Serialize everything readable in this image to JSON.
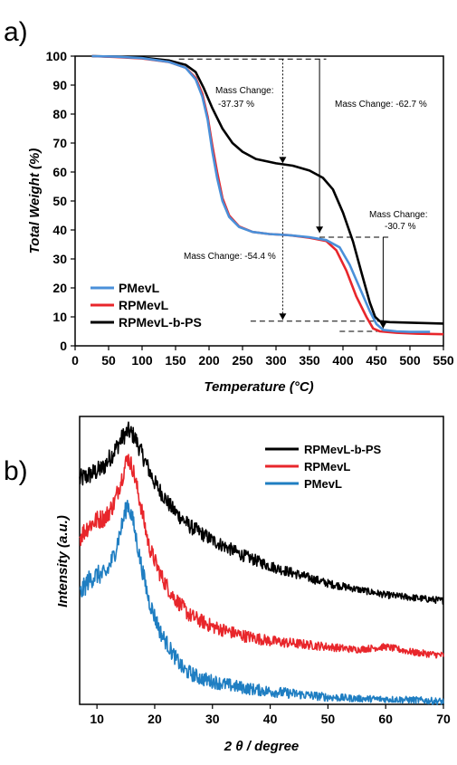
{
  "panel_a_label": "a)",
  "panel_b_label": "b)",
  "chart_data": [
    {
      "type": "line",
      "xlabel": "Temperature (°C)",
      "ylabel": "Total Weight (%)",
      "xlim": [
        0,
        550
      ],
      "ylim": [
        0,
        100
      ],
      "xticks": [
        0,
        50,
        100,
        150,
        200,
        250,
        300,
        350,
        400,
        450,
        500,
        550
      ],
      "yticks": [
        0,
        10,
        20,
        30,
        40,
        50,
        60,
        70,
        80,
        90,
        100
      ],
      "legend_position": "bottom-left",
      "series": [
        {
          "name": "PMevL",
          "color": "#4a90d9",
          "points": [
            [
              25,
              100
            ],
            [
              60,
              99.8
            ],
            [
              100,
              99.3
            ],
            [
              140,
              98
            ],
            [
              165,
              96
            ],
            [
              180,
              92
            ],
            [
              190,
              86
            ],
            [
              198,
              78
            ],
            [
              205,
              67
            ],
            [
              212,
              58
            ],
            [
              220,
              50
            ],
            [
              230,
              44.5
            ],
            [
              245,
              41
            ],
            [
              265,
              39.3
            ],
            [
              290,
              38.6
            ],
            [
              320,
              38.2
            ],
            [
              350,
              37.5
            ],
            [
              375,
              36.5
            ],
            [
              395,
              34
            ],
            [
              410,
              28
            ],
            [
              425,
              20
            ],
            [
              440,
              12
            ],
            [
              450,
              7.5
            ],
            [
              460,
              5.5
            ],
            [
              480,
              5
            ],
            [
              500,
              4.8
            ],
            [
              530,
              4.8
            ]
          ]
        },
        {
          "name": "RPMevL",
          "color": "#e8262b",
          "points": [
            [
              25,
              100
            ],
            [
              60,
              99.7
            ],
            [
              100,
              99.2
            ],
            [
              140,
              98
            ],
            [
              165,
              96
            ],
            [
              180,
              92.5
            ],
            [
              190,
              87
            ],
            [
              198,
              79
            ],
            [
              205,
              69
            ],
            [
              212,
              60
            ],
            [
              220,
              51
            ],
            [
              230,
              45
            ],
            [
              245,
              41.2
            ],
            [
              265,
              39.3
            ],
            [
              290,
              38.6
            ],
            [
              320,
              38.2
            ],
            [
              350,
              37.3
            ],
            [
              375,
              36.2
            ],
            [
              390,
              33
            ],
            [
              405,
              26
            ],
            [
              420,
              17
            ],
            [
              435,
              10
            ],
            [
              445,
              6
            ],
            [
              455,
              5
            ],
            [
              480,
              4.5
            ],
            [
              510,
              4.2
            ],
            [
              550,
              4
            ]
          ]
        },
        {
          "name": "RPMevL-b-PS",
          "color": "#000000",
          "points": [
            [
              25,
              100
            ],
            [
              60,
              99.8
            ],
            [
              100,
              99.5
            ],
            [
              140,
              98.5
            ],
            [
              165,
              97
            ],
            [
              180,
              94.5
            ],
            [
              192,
              89
            ],
            [
              205,
              82
            ],
            [
              220,
              75
            ],
            [
              235,
              70
            ],
            [
              250,
              67
            ],
            [
              270,
              64.5
            ],
            [
              300,
              63
            ],
            [
              325,
              62.2
            ],
            [
              350,
              60.5
            ],
            [
              370,
              58
            ],
            [
              385,
              54
            ],
            [
              400,
              46
            ],
            [
              415,
              36
            ],
            [
              428,
              25
            ],
            [
              440,
              15
            ],
            [
              448,
              10
            ],
            [
              455,
              8.5
            ],
            [
              470,
              8.2
            ],
            [
              500,
              8
            ],
            [
              550,
              7.7
            ]
          ]
        }
      ],
      "annotations": [
        {
          "line1": "Mass Change:",
          "line2": "-37.37 %"
        },
        {
          "line1": "Mass Change: -62.7 %"
        },
        {
          "line1": "Mass Change:",
          "line2": "-30.7 %"
        },
        {
          "line1": "Mass Change: -54.4 %"
        }
      ]
    },
    {
      "type": "line",
      "xlabel": "2 θ / degree",
      "ylabel": "Intensity (a.u.)",
      "xlim": [
        7,
        70
      ],
      "xticks": [
        10,
        20,
        30,
        40,
        50,
        60,
        70
      ],
      "legend_position": "top-right",
      "series": [
        {
          "name": "RPMevL-b-PS",
          "color": "#000000",
          "points": [
            [
              7,
              0.78
            ],
            [
              9,
              0.8
            ],
            [
              11,
              0.82
            ],
            [
              13,
              0.88
            ],
            [
              14.5,
              0.93
            ],
            [
              15.5,
              0.95
            ],
            [
              16.5,
              0.93
            ],
            [
              18,
              0.86
            ],
            [
              20,
              0.77
            ],
            [
              23,
              0.68
            ],
            [
              26,
              0.62
            ],
            [
              30,
              0.57
            ],
            [
              35,
              0.52
            ],
            [
              40,
              0.48
            ],
            [
              45,
              0.45
            ],
            [
              50,
              0.42
            ],
            [
              55,
              0.4
            ],
            [
              60,
              0.38
            ],
            [
              65,
              0.37
            ],
            [
              70,
              0.36
            ]
          ]
        },
        {
          "name": "RPMevL",
          "color": "#e8262b",
          "points": [
            [
              7,
              0.58
            ],
            [
              8.5,
              0.62
            ],
            [
              10,
              0.64
            ],
            [
              11.5,
              0.65
            ],
            [
              13,
              0.7
            ],
            [
              14.5,
              0.8
            ],
            [
              15.3,
              0.86
            ],
            [
              16.2,
              0.82
            ],
            [
              17.5,
              0.7
            ],
            [
              19,
              0.55
            ],
            [
              21,
              0.45
            ],
            [
              23,
              0.38
            ],
            [
              26,
              0.31
            ],
            [
              30,
              0.27
            ],
            [
              35,
              0.24
            ],
            [
              40,
              0.22
            ],
            [
              45,
              0.21
            ],
            [
              50,
              0.2
            ],
            [
              55,
              0.19
            ],
            [
              60,
              0.2
            ],
            [
              65,
              0.18
            ],
            [
              70,
              0.17
            ]
          ]
        },
        {
          "name": "PMevL",
          "color": "#1f7ec2",
          "points": [
            [
              7,
              0.38
            ],
            [
              8.5,
              0.43
            ],
            [
              10,
              0.45
            ],
            [
              11.5,
              0.45
            ],
            [
              13,
              0.52
            ],
            [
              14.3,
              0.62
            ],
            [
              15.3,
              0.7
            ],
            [
              16.2,
              0.64
            ],
            [
              17.5,
              0.5
            ],
            [
              19,
              0.36
            ],
            [
              21,
              0.25
            ],
            [
              23,
              0.18
            ],
            [
              25,
              0.12
            ],
            [
              28,
              0.09
            ],
            [
              32,
              0.07
            ],
            [
              36,
              0.055
            ],
            [
              40,
              0.045
            ],
            [
              45,
              0.035
            ],
            [
              50,
              0.025
            ],
            [
              55,
              0.02
            ],
            [
              60,
              0.018
            ],
            [
              65,
              0.015
            ],
            [
              70,
              0.01
            ]
          ]
        }
      ]
    }
  ]
}
